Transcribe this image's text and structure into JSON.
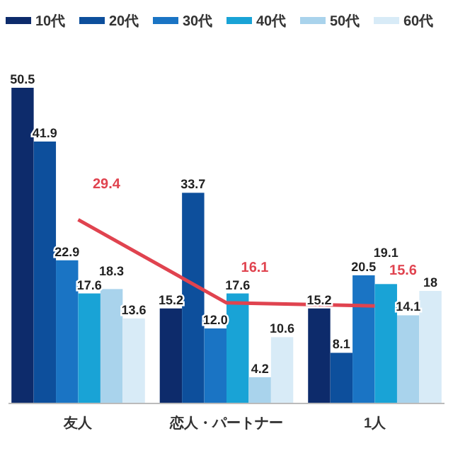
{
  "chart_data": {
    "type": "bar",
    "categories": [
      "友人",
      "恋人・パートナー",
      "1人"
    ],
    "legend": "top",
    "series": [
      {
        "name": "10代",
        "color": "#0d2b6b",
        "values": [
          50.5,
          15.2,
          15.2
        ],
        "value_labels": [
          "50.5",
          "15.2",
          "15.2"
        ]
      },
      {
        "name": "20代",
        "color": "#0d4f9c",
        "values": [
          41.9,
          33.7,
          8.1
        ],
        "value_labels": [
          "41.9",
          "33.7",
          "8.1"
        ]
      },
      {
        "name": "30代",
        "color": "#1a74c4",
        "values": [
          22.9,
          12.0,
          20.5
        ],
        "value_labels": [
          "22.9",
          "12.0",
          "20.5"
        ]
      },
      {
        "name": "40代",
        "color": "#19a3d6",
        "values": [
          17.6,
          17.6,
          19.1
        ],
        "value_labels": [
          "17.6",
          "17.6",
          "19.1"
        ]
      },
      {
        "name": "50代",
        "color": "#a9d3ec",
        "values": [
          18.3,
          4.2,
          14.1
        ],
        "value_labels": [
          "18.3",
          "4.2",
          "14.1"
        ]
      },
      {
        "name": "60代",
        "color": "#d8ebf7",
        "values": [
          13.6,
          10.6,
          18
        ],
        "value_labels": [
          "13.6",
          "10.6",
          "18"
        ]
      },
      {
        "type": "line",
        "color": "#e0434f",
        "values": [
          29.4,
          16.1,
          15.6
        ],
        "value_labels": [
          "29.4",
          "16.1",
          "15.6"
        ]
      }
    ]
  }
}
